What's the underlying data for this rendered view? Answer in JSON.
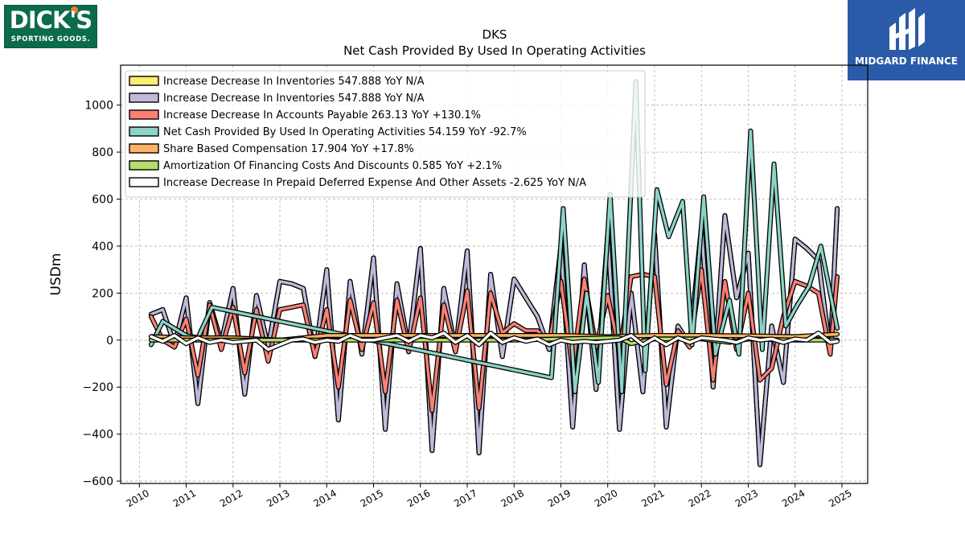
{
  "logos": {
    "left_line1": "DICK'S",
    "left_line2": "SPORTING GOODS.",
    "right_text": "MIDGARD FINANCE",
    "left_bg": "#0b6b4a",
    "right_bg": "#2b5ba8"
  },
  "chart_data": {
    "type": "line",
    "title": "DKS",
    "subtitle": "Net Cash Provided By Used In Operating Activities",
    "ylabel": "USDm",
    "xlabel": "",
    "xlim": [
      2009.6,
      2025.55
    ],
    "ylim": [
      -610,
      1170
    ],
    "xticks": [
      2010,
      2011,
      2012,
      2013,
      2014,
      2015,
      2016,
      2017,
      2018,
      2019,
      2020,
      2021,
      2022,
      2023,
      2024,
      2025
    ],
    "yticks": [
      -600,
      -400,
      -200,
      0,
      200,
      400,
      600,
      800,
      1000
    ],
    "ytick_labels": [
      "−600",
      "−400",
      "−200",
      "0",
      "200",
      "400",
      "600",
      "800",
      "1000"
    ],
    "grid": true,
    "legend_position": "top-left",
    "series": [
      {
        "name": "Increase Decrease In Inventories",
        "legend_label": "Increase Decrease In Inventories  547.888 YoY N/A",
        "color": "#ffed6f",
        "x": [
          2010.25,
          2010.5,
          2010.75,
          2011.0,
          2011.25,
          2011.5,
          2011.75,
          2012.0,
          2012.25,
          2012.5,
          2012.75,
          2013.0,
          2013.25,
          2013.5,
          2013.75,
          2014.0,
          2014.25,
          2014.5,
          2014.75,
          2015.0,
          2015.25,
          2015.5,
          2015.75,
          2016.0,
          2016.25,
          2016.5,
          2016.75,
          2017.0,
          2017.25,
          2017.5,
          2017.75,
          2018.0,
          2018.25,
          2018.5,
          2018.75,
          2019.0,
          2019.25,
          2019.5,
          2019.75,
          2020.0,
          2020.25,
          2020.5,
          2020.75,
          2021.0,
          2021.25,
          2021.5,
          2021.75,
          2022.0,
          2022.25,
          2022.5,
          2022.75,
          2023.0,
          2023.25,
          2023.5,
          2023.75,
          2024.0,
          2024.25,
          2024.5,
          2024.75,
          2024.9
        ],
        "y": [
          110,
          130,
          -20,
          180,
          -270,
          160,
          -10,
          220,
          -230,
          190,
          -30,
          250,
          240,
          220,
          -70,
          300,
          -340,
          250,
          -60,
          350,
          -380,
          240,
          -30,
          390,
          -470,
          220,
          -40,
          380,
          -480,
          280,
          -70,
          260,
          180,
          100,
          -40,
          400,
          -370,
          320,
          -210,
          450,
          -380,
          200,
          -220,
          450,
          -370,
          60,
          -20,
          480,
          -200,
          530,
          180,
          370,
          -530,
          60,
          -180,
          430,
          390,
          340,
          -50,
          560
        ]
      },
      {
        "name": "Increase Decrease In Inventories",
        "legend_label": "Increase Decrease In Inventories  547.888 YoY N/A",
        "color": "#bebada",
        "x": [
          2010.25,
          2010.5,
          2010.75,
          2011.0,
          2011.25,
          2011.5,
          2011.75,
          2012.0,
          2012.25,
          2012.5,
          2012.75,
          2013.0,
          2013.25,
          2013.5,
          2013.75,
          2014.0,
          2014.25,
          2014.5,
          2014.75,
          2015.0,
          2015.25,
          2015.5,
          2015.75,
          2016.0,
          2016.25,
          2016.5,
          2016.75,
          2017.0,
          2017.25,
          2017.5,
          2017.75,
          2018.0,
          2018.25,
          2018.5,
          2018.75,
          2019.0,
          2019.25,
          2019.5,
          2019.75,
          2020.0,
          2020.25,
          2020.5,
          2020.75,
          2021.0,
          2021.25,
          2021.5,
          2021.75,
          2022.0,
          2022.25,
          2022.5,
          2022.75,
          2023.0,
          2023.25,
          2023.5,
          2023.75,
          2024.0,
          2024.25,
          2024.5,
          2024.75,
          2024.9
        ],
        "y": [
          110,
          130,
          -20,
          180,
          -270,
          160,
          -10,
          220,
          -230,
          190,
          -30,
          250,
          240,
          220,
          -70,
          300,
          -340,
          250,
          -60,
          350,
          -380,
          240,
          -30,
          390,
          -470,
          220,
          -40,
          380,
          -480,
          280,
          -70,
          260,
          180,
          100,
          -40,
          400,
          -370,
          320,
          -210,
          450,
          -380,
          200,
          -220,
          450,
          -370,
          60,
          -20,
          480,
          -200,
          530,
          180,
          370,
          -530,
          60,
          -180,
          430,
          390,
          340,
          -50,
          560
        ]
      },
      {
        "name": "Increase Decrease In Accounts Payable",
        "legend_label": "Increase Decrease In Accounts Payable  263.13 YoY +130.1%",
        "color": "#fb8072",
        "x": [
          2010.25,
          2010.5,
          2010.75,
          2011.0,
          2011.25,
          2011.5,
          2011.75,
          2012.0,
          2012.25,
          2012.5,
          2012.75,
          2013.0,
          2013.25,
          2013.5,
          2013.75,
          2014.0,
          2014.25,
          2014.5,
          2014.75,
          2015.0,
          2015.25,
          2015.5,
          2015.75,
          2016.0,
          2016.25,
          2016.5,
          2016.75,
          2017.0,
          2017.25,
          2017.5,
          2017.75,
          2018.0,
          2018.25,
          2018.5,
          2018.75,
          2019.0,
          2019.25,
          2019.5,
          2019.75,
          2020.0,
          2020.25,
          2020.5,
          2020.75,
          2021.0,
          2021.25,
          2021.5,
          2021.75,
          2022.0,
          2022.25,
          2022.5,
          2022.75,
          2023.0,
          2023.25,
          2023.5,
          2023.75,
          2024.0,
          2024.25,
          2024.5,
          2024.75,
          2024.9
        ],
        "y": [
          100,
          0,
          -30,
          90,
          -150,
          150,
          -40,
          140,
          -140,
          130,
          -90,
          130,
          140,
          150,
          -70,
          130,
          -200,
          170,
          -40,
          160,
          -220,
          170,
          -50,
          180,
          -300,
          150,
          -50,
          210,
          -290,
          200,
          30,
          70,
          40,
          40,
          -10,
          250,
          -120,
          260,
          -30,
          190,
          -50,
          270,
          280,
          270,
          -190,
          40,
          -30,
          300,
          -170,
          250,
          -40,
          200,
          -170,
          -120,
          100,
          250,
          230,
          200,
          -60,
          270
        ]
      },
      {
        "name": "Net Cash Provided By Used In Operating Activities",
        "legend_label": "Net Cash Provided By Used In Operating Activities  54.159 YoY -92.7%",
        "color": "#8dd3c7",
        "x": [
          2010.25,
          2010.5,
          2011.0,
          2011.25,
          2011.55,
          2018.8,
          2019.05,
          2019.3,
          2019.55,
          2019.8,
          2020.05,
          2020.3,
          2020.6,
          2020.8,
          2021.05,
          2021.3,
          2021.6,
          2021.8,
          2022.05,
          2022.3,
          2022.6,
          2022.8,
          2023.05,
          2023.3,
          2023.55,
          2023.8,
          2024.05,
          2024.3,
          2024.55,
          2024.9
        ],
        "y": [
          -20,
          80,
          20,
          10,
          140,
          -160,
          560,
          -220,
          200,
          -180,
          620,
          -220,
          1100,
          -130,
          640,
          440,
          590,
          -20,
          610,
          -60,
          170,
          -60,
          890,
          -40,
          750,
          60,
          150,
          230,
          400,
          50
        ]
      },
      {
        "name": "Share Based Compensation",
        "legend_label": "Share Based Compensation  17.904 YoY +17.8%",
        "color": "#fdb462",
        "x": [
          2010.25,
          2011.0,
          2012.0,
          2013.0,
          2014.0,
          2015.0,
          2016.0,
          2017.0,
          2018.0,
          2019.0,
          2020.0,
          2021.0,
          2022.0,
          2023.0,
          2024.0,
          2024.9
        ],
        "y": [
          15,
          10,
          10,
          0,
          20,
          20,
          20,
          20,
          20,
          20,
          15,
          20,
          20,
          18,
          15,
          25
        ]
      },
      {
        "name": "Amortization Of Financing Costs And Discounts",
        "legend_label": "Amortization Of Financing Costs And Discounts  0.585 YoY +2.1%",
        "color": "#b3de69",
        "x": [
          2010.25,
          2012.0,
          2014.0,
          2016.0,
          2018.0,
          2020.0,
          2020.25,
          2020.5,
          2021.0,
          2022.0,
          2022.6,
          2023.0,
          2024.0,
          2024.9
        ],
        "y": [
          0,
          0,
          0,
          0,
          0,
          10,
          10,
          -15,
          5,
          5,
          -10,
          5,
          0,
          0
        ]
      },
      {
        "name": "Increase Decrease In Prepaid Deferred Expense And Other Assets",
        "legend_label": "Increase Decrease In Prepaid Deferred Expense And Other Assets  -2.625 YoY N/A",
        "color": "#ffffff",
        "x": [
          2010.25,
          2010.5,
          2010.75,
          2011.0,
          2011.25,
          2011.5,
          2011.75,
          2012.0,
          2012.5,
          2012.75,
          2013.0,
          2013.25,
          2013.5,
          2013.75,
          2014.0,
          2014.25,
          2014.5,
          2014.75,
          2015.0,
          2015.25,
          2015.5,
          2015.75,
          2016.0,
          2016.25,
          2016.5,
          2016.75,
          2017.0,
          2017.25,
          2017.5,
          2017.75,
          2018.0,
          2018.25,
          2018.5,
          2018.75,
          2019.0,
          2019.25,
          2019.5,
          2019.75,
          2020.0,
          2020.25,
          2020.5,
          2020.75,
          2021.0,
          2021.25,
          2021.5,
          2021.75,
          2022.0,
          2022.25,
          2022.5,
          2022.75,
          2023.0,
          2023.25,
          2023.5,
          2023.75,
          2024.0,
          2024.25,
          2024.5,
          2024.75,
          2024.9
        ],
        "y": [
          15,
          -5,
          20,
          -15,
          10,
          -10,
          0,
          -10,
          0,
          -40,
          -20,
          0,
          5,
          -10,
          0,
          -5,
          20,
          0,
          0,
          10,
          20,
          -5,
          20,
          10,
          30,
          -10,
          20,
          -20,
          30,
          -10,
          10,
          -5,
          5,
          -20,
          0,
          -10,
          -5,
          -10,
          -5,
          0,
          20,
          -20,
          10,
          -20,
          10,
          -10,
          10,
          5,
          0,
          -10,
          10,
          0,
          5,
          -10,
          5,
          0,
          30,
          -10,
          -5
        ]
      }
    ]
  }
}
